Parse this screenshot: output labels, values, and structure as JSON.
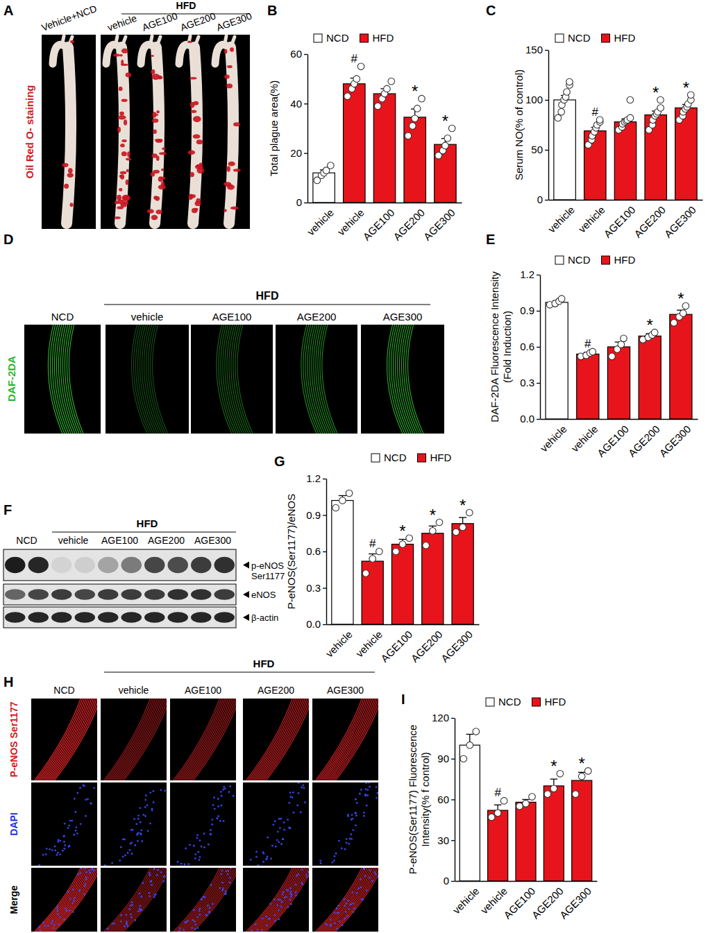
{
  "chart_data": [
    {
      "panel": "B",
      "type": "bar",
      "ylabel": [
        "Total plague area(%)"
      ],
      "categories": [
        "vehicle",
        "vehicle",
        "AGE100",
        "AGE200",
        "AGE300"
      ],
      "ylim": [
        0,
        60
      ],
      "yticks": [
        0,
        20,
        40,
        60
      ],
      "legend": "top",
      "series": [
        {
          "name": "NCD",
          "color": "#ffffff",
          "values": [
            12,
            null,
            null,
            null,
            null
          ],
          "errors": [
            1.2,
            null,
            null,
            null,
            null
          ],
          "points": [
            [
              9,
              11,
              12,
              13,
              15
            ],
            null,
            null,
            null,
            null
          ]
        },
        {
          "name": "HFD",
          "color": "#e8141b",
          "values": [
            null,
            48,
            44,
            34.5,
            23.5
          ],
          "errors": [
            null,
            2.3,
            2,
            3.3,
            2.4
          ],
          "points": [
            null,
            [
              43,
              46,
              48,
              50,
              55
            ],
            [
              39,
              42,
              44,
              46,
              49
            ],
            [
              27,
              31,
              34,
              38,
              42
            ],
            [
              19,
              21,
              23,
              26,
              30
            ]
          ]
        }
      ],
      "annotations": [
        null,
        "#",
        null,
        "*",
        "*"
      ]
    },
    {
      "panel": "C",
      "type": "bar",
      "ylabel": [
        "Serum NO(% of control)"
      ],
      "categories": [
        "vehicle",
        "vehicle",
        "AGE100",
        "AGE200",
        "AGE300"
      ],
      "ylim": [
        0,
        150
      ],
      "yticks": [
        0,
        50,
        100,
        150
      ],
      "legend": "top",
      "series": [
        {
          "name": "NCD",
          "color": "#ffffff",
          "values": [
            100,
            null,
            null,
            null,
            null
          ],
          "errors": [
            4.5,
            null,
            null,
            null,
            null
          ],
          "points": [
            [
              82,
              88,
              95,
              100,
              103,
              108,
              115,
              118
            ],
            null,
            null,
            null,
            null
          ]
        },
        {
          "name": "HFD",
          "color": "#e8141b",
          "values": [
            null,
            69,
            78,
            85,
            92
          ],
          "errors": [
            null,
            3.5,
            3,
            3.8,
            3.5
          ],
          "points": [
            null,
            [
              55,
              60,
              64,
              68,
              72,
              75,
              78,
              80
            ],
            [
              70,
              73,
              76,
              78,
              79,
              80,
              82,
              100
            ],
            [
              70,
              75,
              80,
              84,
              86,
              88,
              92,
              100
            ],
            [
              80,
              84,
              88,
              91,
              93,
              96,
              100,
              105
            ]
          ]
        }
      ],
      "annotations": [
        null,
        "#",
        null,
        "*",
        "*"
      ]
    },
    {
      "panel": "E",
      "type": "bar",
      "ylabel": [
        "DAF-2DA Fluorescence Intensity",
        "(Fold Induction)"
      ],
      "categories": [
        "vehicle",
        "vehicle",
        "AGE100",
        "AGE200",
        "AGE300"
      ],
      "ylim": [
        0,
        1.2
      ],
      "yticks": [
        {
          "value": 0,
          "label": "0.0"
        },
        0.3,
        0.6,
        0.9,
        1.2
      ],
      "legend": "top",
      "series": [
        {
          "name": "NCD",
          "color": "#ffffff",
          "values": [
            0.97,
            null,
            null,
            null,
            null
          ],
          "errors": [
            0.015,
            null,
            null,
            null,
            null
          ],
          "points": [
            [
              0.95,
              0.96,
              0.98,
              1.0
            ],
            null,
            null,
            null,
            null
          ]
        },
        {
          "name": "HFD",
          "color": "#e8141b",
          "values": [
            null,
            0.54,
            0.6,
            0.69,
            0.87
          ],
          "errors": [
            null,
            0.015,
            0.04,
            0.02,
            0.035
          ],
          "points": [
            null,
            [
              0.52,
              0.53,
              0.55,
              0.56
            ],
            [
              0.52,
              0.58,
              0.62,
              0.67
            ],
            [
              0.66,
              0.68,
              0.7,
              0.72
            ],
            [
              0.8,
              0.85,
              0.88,
              0.94
            ]
          ]
        }
      ],
      "annotations": [
        null,
        "#",
        null,
        "*",
        "*"
      ]
    },
    {
      "panel": "G",
      "type": "bar",
      "ylabel": [
        "P-eNOS(Ser1177)/eNOS"
      ],
      "categories": [
        "vehicle",
        "vehicle",
        "AGE100",
        "AGE200",
        "AGE300"
      ],
      "ylim": [
        0,
        1.2
      ],
      "yticks": [
        {
          "value": 0,
          "label": "0.0"
        },
        0.3,
        0.6,
        0.9,
        1.2
      ],
      "legend": "top",
      "series": [
        {
          "name": "NCD",
          "color": "#ffffff",
          "values": [
            1.02,
            null,
            null,
            null,
            null
          ],
          "errors": [
            0.04,
            null,
            null,
            null,
            null
          ],
          "points": [
            [
              0.96,
              1.02,
              1.08
            ],
            null,
            null,
            null,
            null
          ]
        },
        {
          "name": "HFD",
          "color": "#e8141b",
          "values": [
            null,
            0.52,
            0.66,
            0.75,
            0.83
          ],
          "errors": [
            null,
            0.06,
            0.04,
            0.06,
            0.05
          ],
          "points": [
            null,
            [
              0.42,
              0.54,
              0.6
            ],
            [
              0.6,
              0.66,
              0.71
            ],
            [
              0.65,
              0.77,
              0.84
            ],
            [
              0.76,
              0.8,
              0.92
            ]
          ]
        }
      ],
      "annotations": [
        null,
        "#",
        "*",
        "*",
        "*"
      ]
    },
    {
      "panel": "I",
      "type": "bar",
      "ylabel": [
        "P-eNOS(Ser1177) Fluorescence",
        "Intensity(% f control)"
      ],
      "categories": [
        "vehicle",
        "vehicle",
        "AGE100",
        "AGE200",
        "AGE300"
      ],
      "ylim": [
        0,
        120
      ],
      "yticks": [
        0,
        30,
        60,
        90,
        120
      ],
      "legend": "top",
      "series": [
        {
          "name": "NCD",
          "color": "#ffffff",
          "values": [
            100,
            null,
            null,
            null,
            null
          ],
          "errors": [
            8,
            null,
            null,
            null,
            null
          ],
          "points": [
            [
              90,
              100,
              110
            ],
            null,
            null,
            null,
            null
          ]
        },
        {
          "name": "HFD",
          "color": "#e8141b",
          "values": [
            null,
            52,
            58,
            70,
            74
          ],
          "errors": [
            null,
            4,
            2,
            5,
            6
          ],
          "points": [
            null,
            [
              47,
              50,
              59
            ],
            [
              55,
              57,
              62
            ],
            [
              64,
              68,
              79
            ],
            [
              64,
              77,
              81
            ]
          ]
        }
      ],
      "annotations": [
        null,
        "#",
        null,
        "*",
        "*"
      ]
    }
  ],
  "panel_A": {
    "label": "A",
    "group": "HFD",
    "columns": [
      "Vehicle+NCD",
      "vehicle",
      "AGE100",
      "AGE200",
      "AGE300"
    ],
    "side_label": "Oil Red O- staining"
  },
  "panel_D": {
    "label": "D",
    "group": "HFD",
    "columns": [
      "NCD",
      "vehicle",
      "AGE100",
      "AGE200",
      "AGE300"
    ],
    "side_label": "DAF-2DA"
  },
  "panel_F": {
    "label": "F",
    "group": "HFD",
    "columns": [
      "NCD",
      "vehicle",
      "AGE100",
      "AGE200",
      "AGE300"
    ],
    "bands": [
      [
        "p-eNOS",
        "Ser1177"
      ],
      [
        "eNOS"
      ],
      [
        "β-actin"
      ]
    ]
  },
  "panel_H": {
    "label": "H",
    "group": "HFD",
    "columns": [
      "NCD",
      "vehicle",
      "AGE100",
      "AGE200",
      "AGE300"
    ],
    "rows": [
      "P-eNOS Ser1177",
      "DAPI",
      "Merge"
    ]
  }
}
